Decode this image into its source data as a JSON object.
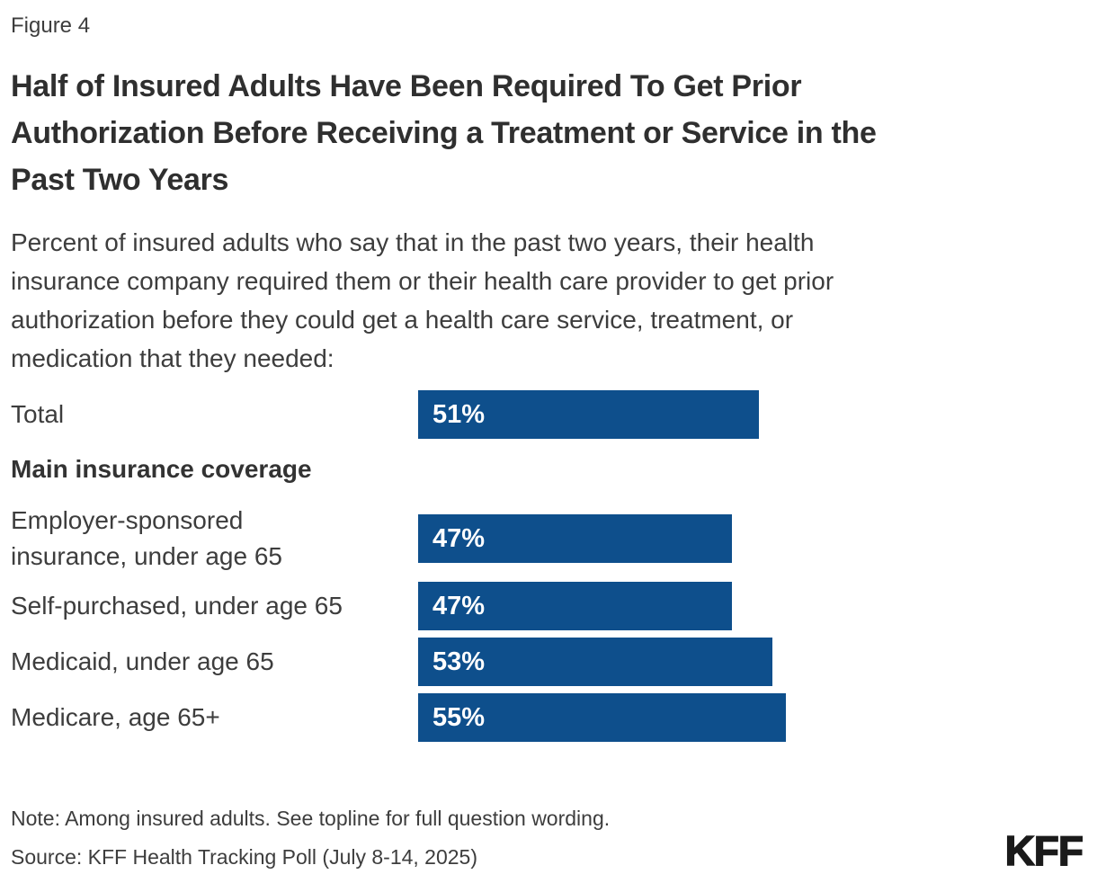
{
  "figure_label": "Figure 4",
  "title": "Half of Insured Adults Have Been Required To Get Prior\nAuthorization Before Receiving a Treatment or Service in the\nPast Two Years",
  "subtitle": "Percent of insured adults who say that in the past two years, their health\ninsurance company required them or their health care provider to get prior\nauthorization before they could get a health care service, treatment, or\nmedication that they needed:",
  "chart_data": {
    "type": "bar",
    "orientation": "horizontal",
    "categories": [
      "Total",
      "Employer-sponsored insurance, under age 65",
      "Self-purchased, under age 65",
      "Medicaid, under age 65",
      "Medicare, age 65+"
    ],
    "labels_display": [
      "Total",
      "Employer-sponsored\ninsurance, under age 65",
      "Self-purchased, under age 65",
      "Medicaid, under age 65",
      "Medicare, age 65+"
    ],
    "values": [
      51,
      47,
      47,
      53,
      55
    ],
    "value_labels": [
      "51%",
      "47%",
      "47%",
      "53%",
      "55%"
    ],
    "unit": "%",
    "xlim": [
      0,
      100
    ],
    "grid": false,
    "legend": false,
    "group_header": "Main insurance coverage",
    "group_header_after_index": 0,
    "bar_color": "#0e4f8c",
    "value_label_color": "#ffffff"
  },
  "note": "Note: Among insured adults. See topline for full question wording.",
  "source": "Source: KFF Health Tracking Poll (July 8-14, 2025)",
  "logo_text": "KFF"
}
